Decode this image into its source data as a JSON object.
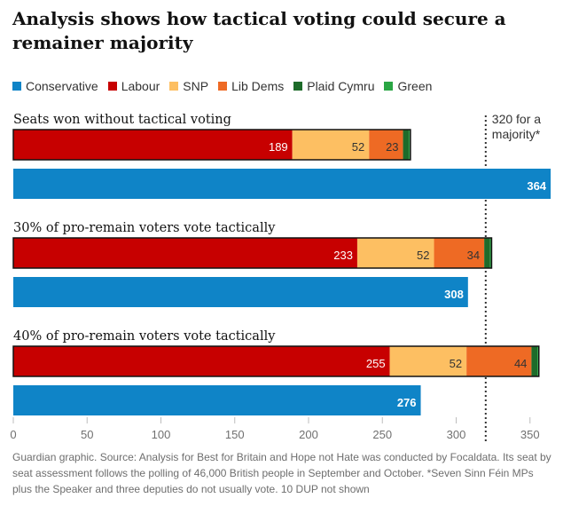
{
  "title": "Analysis shows how tactical voting could secure a remainer majority",
  "legend": [
    {
      "name": "Conservative",
      "color": "#0f84c7"
    },
    {
      "name": "Labour",
      "color": "#c70000"
    },
    {
      "name": "SNP",
      "color": "#fdbf62"
    },
    {
      "name": "Lib Dems",
      "color": "#ee6a24"
    },
    {
      "name": "Plaid Cymru",
      "color": "#1d6b2a"
    },
    {
      "name": "Green",
      "color": "#2aa644"
    }
  ],
  "footnote": "Guardian graphic. Source: Analysis for Best for Britain and Hope not Hate was conducted by Focaldata. Its seat by seat assessment follows the polling of 46,000 British people in September and October. *Seven Sinn Féin MPs plus the Speaker and three deputies do not usually vote. 10 DUP not shown",
  "chart_data": {
    "type": "bar",
    "orientation": "horizontal",
    "stacked": true,
    "xlim": [
      0,
      364
    ],
    "xticks": [
      0,
      50,
      100,
      150,
      200,
      250,
      300,
      350
    ],
    "reference_line": {
      "value": 320,
      "label_lines": [
        "320 for a",
        "majority*"
      ]
    },
    "groups": [
      {
        "label": "Seats won without tactical voting",
        "remain_bloc": [
          {
            "party": "Labour",
            "value": 189,
            "label": "189"
          },
          {
            "party": "SNP",
            "value": 52,
            "label": "52"
          },
          {
            "party": "Lib Dems",
            "value": 23,
            "label": "23"
          },
          {
            "party": "Plaid Cymru",
            "value": 4,
            "label": ""
          },
          {
            "party": "Green",
            "value": 1,
            "label": ""
          }
        ],
        "conservative": {
          "party": "Conservative",
          "value": 364,
          "label": "364"
        }
      },
      {
        "label": "30% of pro-remain voters vote tactically",
        "remain_bloc": [
          {
            "party": "Labour",
            "value": 233,
            "label": "233"
          },
          {
            "party": "SNP",
            "value": 52,
            "label": "52"
          },
          {
            "party": "Lib Dems",
            "value": 34,
            "label": "34"
          },
          {
            "party": "Plaid Cymru",
            "value": 4,
            "label": ""
          },
          {
            "party": "Green",
            "value": 1,
            "label": ""
          }
        ],
        "conservative": {
          "party": "Conservative",
          "value": 308,
          "label": "308"
        }
      },
      {
        "label": "40% of pro-remain voters vote tactically",
        "remain_bloc": [
          {
            "party": "Labour",
            "value": 255,
            "label": "255"
          },
          {
            "party": "SNP",
            "value": 52,
            "label": "52"
          },
          {
            "party": "Lib Dems",
            "value": 44,
            "label": "44"
          },
          {
            "party": "Plaid Cymru",
            "value": 4,
            "label": ""
          },
          {
            "party": "Green",
            "value": 1,
            "label": ""
          }
        ],
        "conservative": {
          "party": "Conservative",
          "value": 276,
          "label": "276"
        }
      }
    ]
  }
}
